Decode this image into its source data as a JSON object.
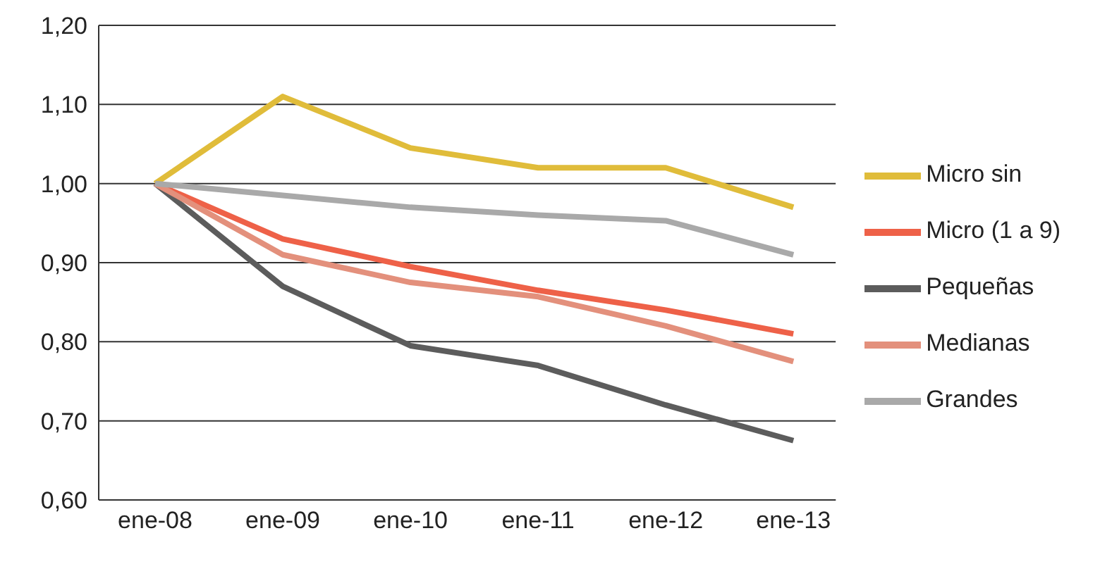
{
  "chart_data": {
    "type": "line",
    "categories": [
      "ene-08",
      "ene-09",
      "ene-10",
      "ene-11",
      "ene-12",
      "ene-13"
    ],
    "series": [
      {
        "name": "Micro sin",
        "color": "#e0bc3a",
        "values": [
          1.0,
          1.11,
          1.045,
          1.02,
          1.02,
          0.97
        ]
      },
      {
        "name": "Micro (1 a 9)",
        "color": "#ee6148",
        "values": [
          1.0,
          0.93,
          0.895,
          0.865,
          0.84,
          0.81
        ]
      },
      {
        "name": "Pequeñas",
        "color": "#5c5c5c",
        "values": [
          1.0,
          0.87,
          0.795,
          0.77,
          0.72,
          0.675
        ]
      },
      {
        "name": "Medianas",
        "color": "#e3907c",
        "values": [
          1.0,
          0.91,
          0.875,
          0.857,
          0.82,
          0.775
        ]
      },
      {
        "name": "Grandes",
        "color": "#a9a9a9",
        "values": [
          1.0,
          0.985,
          0.97,
          0.96,
          0.953,
          0.91
        ]
      }
    ],
    "ylim": [
      0.6,
      1.2
    ],
    "yticks": [
      {
        "value": 0.6,
        "label": "0,60"
      },
      {
        "value": 0.7,
        "label": "0,70"
      },
      {
        "value": 0.8,
        "label": "0,80"
      },
      {
        "value": 0.9,
        "label": "0,90"
      },
      {
        "value": 1.0,
        "label": "1,00"
      },
      {
        "value": 1.1,
        "label": "1,10"
      },
      {
        "value": 1.2,
        "label": "1,20"
      }
    ],
    "grid": "y",
    "legend": "right",
    "marker": "none",
    "line_style": "solid"
  }
}
